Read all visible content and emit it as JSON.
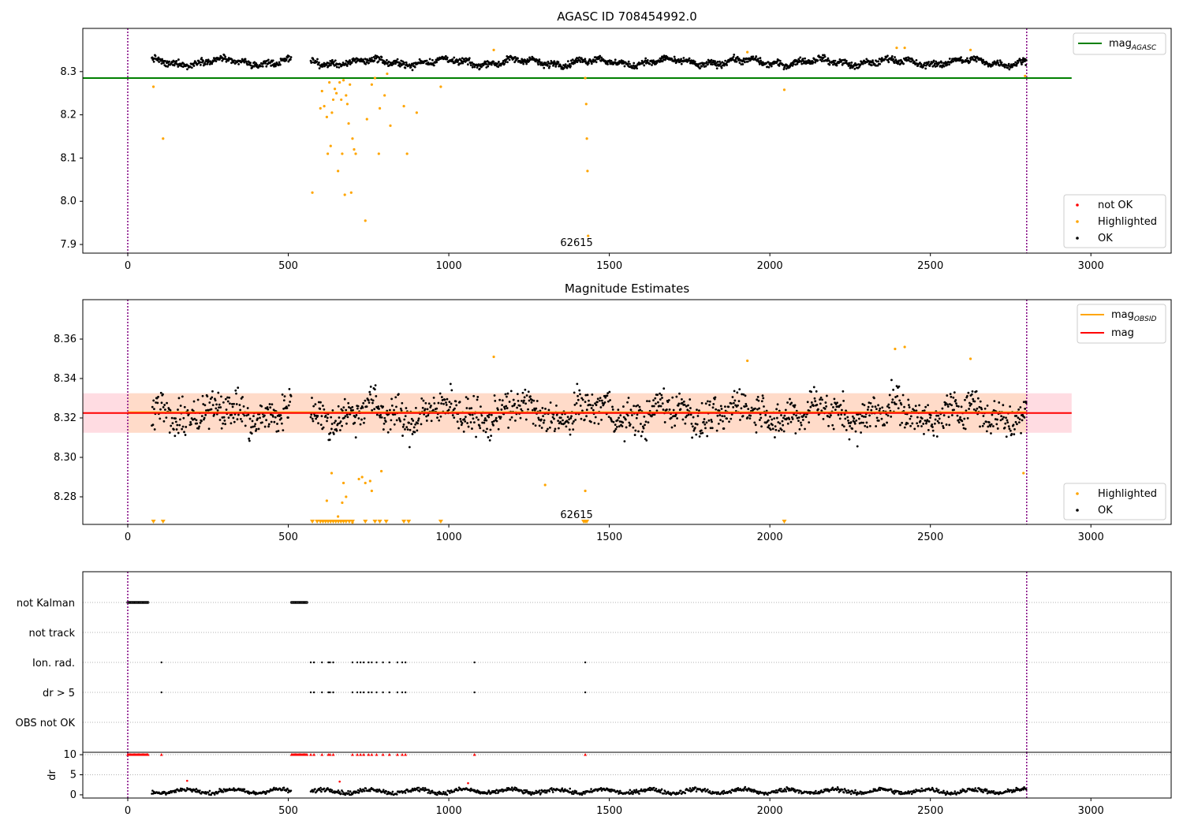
{
  "colors": {
    "ok": "#000000",
    "not_ok": "#ff0000",
    "highlighted": "#ffa500",
    "mag_agasc_line": "#008000",
    "mag_line": "#ff0000",
    "mag_obsid_line": "#ffa500",
    "band_fill": "#ffc0cb",
    "band_fill_inner": "#ffdab9",
    "vline": "#800080"
  },
  "chart_data": [
    {
      "type": "scatter",
      "title": "AGASC ID 708454992.0",
      "xlim": [
        -140,
        3250
      ],
      "ylim": [
        7.88,
        8.4
      ],
      "xticks": [
        0,
        500,
        1000,
        1500,
        2000,
        2500,
        3000
      ],
      "yticks": [
        7.9,
        8.0,
        8.1,
        8.2,
        8.3
      ],
      "ytick_labels": [
        "7.9",
        "8.0",
        "8.1",
        "8.2",
        "8.3"
      ],
      "grid": false,
      "legend_line": {
        "label_main": "mag",
        "label_sub": "AGASC",
        "placement": "top-right"
      },
      "legend_points": {
        "entries": [
          "not OK",
          "Highlighted",
          "OK"
        ],
        "placement": "bottom-right"
      },
      "obsid_annotation": {
        "text": "62615",
        "x": 1398
      },
      "vlines_x": [
        0,
        2800
      ],
      "mag_agasc": 8.285,
      "mag_agasc_range": [
        -140,
        2940
      ],
      "ok_band": {
        "x_range": [
          75,
          2800
        ],
        "center": 8.322,
        "amplitude": 0.01
      },
      "ok_segments": [
        [
          75,
          510
        ],
        [
          570,
          2800
        ]
      ],
      "highlighted_points": [
        {
          "x": 80,
          "y": 8.265
        },
        {
          "x": 110,
          "y": 8.145
        },
        {
          "x": 575,
          "y": 8.02
        },
        {
          "x": 600,
          "y": 8.215
        },
        {
          "x": 605,
          "y": 8.255
        },
        {
          "x": 612,
          "y": 8.22
        },
        {
          "x": 620,
          "y": 8.195
        },
        {
          "x": 623,
          "y": 8.11
        },
        {
          "x": 628,
          "y": 8.275
        },
        {
          "x": 632,
          "y": 8.128
        },
        {
          "x": 636,
          "y": 8.205
        },
        {
          "x": 640,
          "y": 8.235
        },
        {
          "x": 645,
          "y": 8.26
        },
        {
          "x": 650,
          "y": 8.25
        },
        {
          "x": 655,
          "y": 8.07
        },
        {
          "x": 660,
          "y": 8.275
        },
        {
          "x": 665,
          "y": 8.235
        },
        {
          "x": 668,
          "y": 8.11
        },
        {
          "x": 672,
          "y": 8.28
        },
        {
          "x": 676,
          "y": 8.015
        },
        {
          "x": 680,
          "y": 8.245
        },
        {
          "x": 684,
          "y": 8.225
        },
        {
          "x": 688,
          "y": 8.18
        },
        {
          "x": 692,
          "y": 8.27
        },
        {
          "x": 696,
          "y": 8.02
        },
        {
          "x": 700,
          "y": 8.145
        },
        {
          "x": 705,
          "y": 8.12
        },
        {
          "x": 710,
          "y": 8.11
        },
        {
          "x": 740,
          "y": 7.955
        },
        {
          "x": 745,
          "y": 8.19
        },
        {
          "x": 760,
          "y": 8.27
        },
        {
          "x": 770,
          "y": 8.285
        },
        {
          "x": 782,
          "y": 8.11
        },
        {
          "x": 785,
          "y": 8.215
        },
        {
          "x": 800,
          "y": 8.245
        },
        {
          "x": 808,
          "y": 8.295
        },
        {
          "x": 818,
          "y": 8.175
        },
        {
          "x": 860,
          "y": 8.22
        },
        {
          "x": 870,
          "y": 8.11
        },
        {
          "x": 900,
          "y": 8.205
        },
        {
          "x": 975,
          "y": 8.265
        },
        {
          "x": 1140,
          "y": 8.35
        },
        {
          "x": 1425,
          "y": 8.285
        },
        {
          "x": 1428,
          "y": 8.225
        },
        {
          "x": 1430,
          "y": 8.145
        },
        {
          "x": 1432,
          "y": 8.07
        },
        {
          "x": 1434,
          "y": 7.92
        },
        {
          "x": 1930,
          "y": 8.345
        },
        {
          "x": 2045,
          "y": 8.258
        },
        {
          "x": 2395,
          "y": 8.355
        },
        {
          "x": 2420,
          "y": 8.355
        },
        {
          "x": 2625,
          "y": 8.35
        },
        {
          "x": 2795,
          "y": 8.29
        }
      ]
    },
    {
      "type": "scatter",
      "title": "Magnitude Estimates",
      "xlim": [
        -140,
        3250
      ],
      "ylim": [
        8.266,
        8.38
      ],
      "xticks": [
        0,
        500,
        1000,
        1500,
        2000,
        2500,
        3000
      ],
      "yticks": [
        8.28,
        8.3,
        8.32,
        8.34,
        8.36
      ],
      "ytick_labels": [
        "8.28",
        "8.30",
        "8.32",
        "8.34",
        "8.36"
      ],
      "grid": false,
      "legend_line": {
        "entries": [
          {
            "label_main": "mag",
            "label_sub": "OBSID"
          },
          {
            "label_main": "mag",
            "label_sub": ""
          }
        ],
        "placement": "top-right"
      },
      "legend_points": {
        "entries": [
          "Highlighted",
          "OK"
        ],
        "placement": "bottom-right"
      },
      "obsid_annotation": {
        "text": "62615",
        "x": 1398
      },
      "vlines_x": [
        0,
        2800
      ],
      "mag": 8.3225,
      "mag_band": [
        8.3125,
        8.3325
      ],
      "mag_range": [
        -140,
        2940
      ],
      "ok_segments": [
        [
          75,
          510
        ],
        [
          570,
          2800
        ]
      ],
      "highlighted_points": [
        {
          "x": 635,
          "y": 8.292
        },
        {
          "x": 620,
          "y": 8.278
        },
        {
          "x": 655,
          "y": 8.27
        },
        {
          "x": 668,
          "y": 8.277
        },
        {
          "x": 672,
          "y": 8.287
        },
        {
          "x": 680,
          "y": 8.28
        },
        {
          "x": 700,
          "y": 8.267
        },
        {
          "x": 720,
          "y": 8.289
        },
        {
          "x": 730,
          "y": 8.29
        },
        {
          "x": 740,
          "y": 8.287
        },
        {
          "x": 755,
          "y": 8.288
        },
        {
          "x": 760,
          "y": 8.283
        },
        {
          "x": 790,
          "y": 8.293
        },
        {
          "x": 1300,
          "y": 8.286
        },
        {
          "x": 1425,
          "y": 8.283
        },
        {
          "x": 1140,
          "y": 8.351
        },
        {
          "x": 1930,
          "y": 8.349
        },
        {
          "x": 2390,
          "y": 8.355
        },
        {
          "x": 2420,
          "y": 8.356
        },
        {
          "x": 2625,
          "y": 8.35
        },
        {
          "x": 2790,
          "y": 8.292
        }
      ],
      "lower_markers_x": [
        80,
        110,
        575,
        590,
        600,
        608,
        616,
        624,
        632,
        640,
        648,
        656,
        664,
        672,
        680,
        690,
        700,
        740,
        770,
        785,
        805,
        860,
        875,
        975,
        1420,
        1425,
        1430,
        2045
      ]
    },
    {
      "type": "scatter",
      "title": "",
      "xlim": [
        -140,
        3250
      ],
      "xticks": [
        0,
        500,
        1000,
        1500,
        2000,
        2500,
        3000
      ],
      "flag_rows": [
        "not Kalman",
        "not track",
        "Ion. rad.",
        "dr > 5",
        "OBS not OK"
      ],
      "flag_points": {
        "not Kalman": [
          [
            0,
            65
          ],
          [
            510,
            560
          ]
        ],
        "not track": [],
        "Ion. rad.": [
          105,
          570,
          580,
          605,
          625,
          630,
          640,
          700,
          715,
          725,
          735,
          750,
          760,
          775,
          795,
          815,
          840,
          855,
          865,
          1080,
          1425
        ],
        "dr > 5": [
          105,
          570,
          580,
          605,
          625,
          630,
          640,
          700,
          715,
          725,
          735,
          750,
          760,
          775,
          795,
          815,
          840,
          855,
          865,
          1080,
          1425
        ],
        "OBS not OK": []
      },
      "dr_panel": {
        "ylabel": "dr",
        "yticks": [
          0,
          5,
          10
        ],
        "ytick_labels": [
          "0",
          "5",
          "10"
        ],
        "ylim": [
          -0.8,
          10.6
        ],
        "clipped_value": 10,
        "clipped_x": [
          [
            0,
            65
          ],
          [
            510,
            560
          ],
          105,
          570,
          580,
          605,
          625,
          630,
          640,
          700,
          715,
          725,
          735,
          750,
          760,
          775,
          795,
          815,
          840,
          855,
          865,
          1080,
          1425
        ],
        "red_points": [
          {
            "x": 185,
            "y": 3.5
          },
          {
            "x": 660,
            "y": 3.3
          },
          {
            "x": 1060,
            "y": 2.9
          }
        ],
        "ok_segments": [
          [
            75,
            510
          ],
          [
            570,
            2800
          ]
        ]
      }
    }
  ]
}
